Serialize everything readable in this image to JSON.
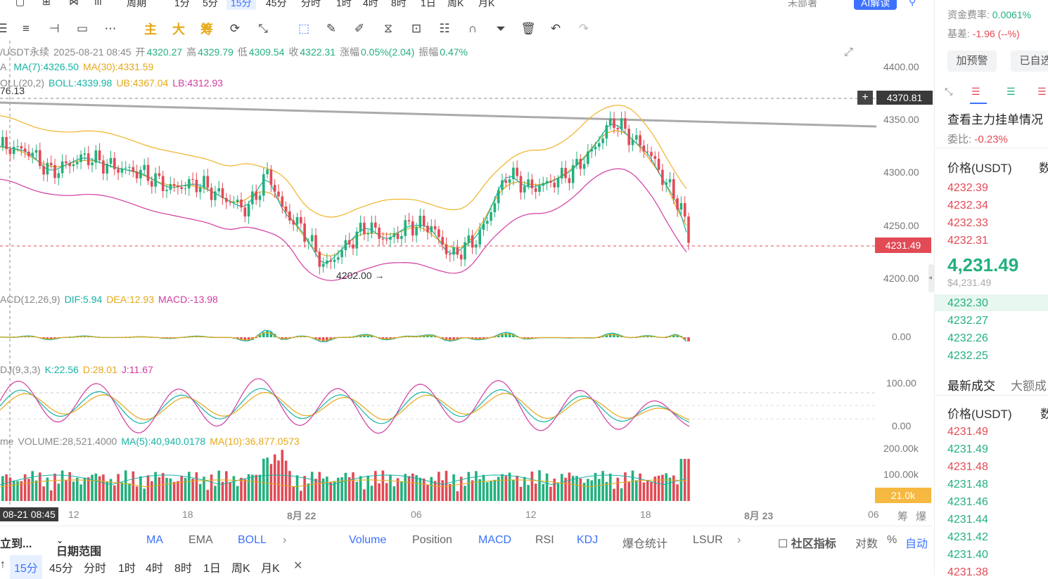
{
  "topnav": {
    "items": [
      "周期",
      "1分",
      "5分",
      "15分",
      "45分",
      "分时",
      "1时",
      "4时",
      "8时",
      "1日",
      "周K",
      "月K"
    ],
    "active": "15分",
    "more_label": "未部署",
    "ai_label": "AI解读"
  },
  "toolbar": {
    "main_label": "主",
    "big_label": "大",
    "chips_label": "筹"
  },
  "chart": {
    "symbol": "/USDT永续",
    "datetime": "2025-08-21 08:45",
    "open_label": "开",
    "open": "4320.27",
    "high_label": "高",
    "high": "4329.79",
    "low_label": "低",
    "low": "4309.54",
    "close_label": "收",
    "close": "4322.31",
    "change_label": "涨幅",
    "change": "0.05%(2.04)",
    "amp_label": "振幅",
    "amp": "0.47%",
    "ma_prefix": "A",
    "ma7": "MA(7):4326.50",
    "ma30": "MA(30):4331.59",
    "boll_prefix": "OLL(20,2)",
    "boll_mid": "BOLL:4339.98",
    "boll_ub": "UB:4367.04",
    "boll_lb": "LB:4312.93",
    "left_price": "76.13",
    "crosshair_price": "4370.81",
    "last_price": "4231.49",
    "low_marker": "4202.00",
    "y_labels": [
      "4400.00",
      "4350.00",
      "4300.00",
      "4250.00",
      "4200.00"
    ]
  },
  "macd": {
    "prefix": "ACD(12,26,9)",
    "dif": "DIF:5.94",
    "dea": "DEA:12.93",
    "macd": "MACD:-13.98",
    "y_label": "0.00"
  },
  "kdj": {
    "prefix": "DJ(9,3,3)",
    "k": "K:22.56",
    "d": "D:28.01",
    "j": "J:11.67",
    "y_labels": [
      "100.00",
      "0.00"
    ]
  },
  "volume": {
    "prefix": "me",
    "vol": "VOLUME:28,521.4000",
    "ma5": "MA(5):40,940.0178",
    "ma10": "MA(10):36,877.0573",
    "y_labels": [
      "200.00k",
      "100.00k"
    ],
    "last_vol": "21.0k"
  },
  "xaxis": {
    "cursor_label": "08-21 08:45",
    "labels": [
      "12",
      "18",
      "8月 22",
      "06",
      "12",
      "18",
      "8月 23",
      "06"
    ],
    "chip_label": "筹",
    "burst_label": "爆"
  },
  "bottom_bar": {
    "goto": "立到...",
    "date_range": "日期范围",
    "main_indicators": [
      "MA",
      "EMA",
      "BOLL"
    ],
    "sub_indicators": [
      "Volume",
      "Position",
      "MACD",
      "RSI",
      "KDJ",
      "爆仓统计",
      "LSUR"
    ],
    "community": "社区指标",
    "log": "对数",
    "percent": "%",
    "auto": "自动"
  },
  "period_bar": {
    "items": [
      "15分",
      "45分",
      "分时",
      "1时",
      "4时",
      "8时",
      "1日",
      "周K",
      "月K"
    ],
    "active": "15分"
  },
  "rightpanel": {
    "funding_label": "资金费率:",
    "funding_value": "0.0061%",
    "basis_label": "基差:",
    "basis_value": "-1.96 (--%)",
    "alert_button": "加预警",
    "selfselect_button": "已自选",
    "orderbook_title": "查看主力挂单情况",
    "ratio_label": "委比:",
    "ratio_value": "-0.23%",
    "price_header": "价格(USDT)",
    "qty_header": "数",
    "asks": [
      "4232.39",
      "4232.34",
      "4232.33",
      "4232.31"
    ],
    "mid_price": "4,231.49",
    "mid_usd": "$4,231.49",
    "bids": [
      "4232.30",
      "4232.27",
      "4232.26",
      "4232.25"
    ],
    "trades_tab": "最新成交",
    "big_trades_tab": "大额成",
    "trades": [
      "4231.49",
      "4231.49",
      "4231.48",
      "4231.48",
      "4231.46",
      "4231.44",
      "4231.42",
      "4231.40",
      "4231.38"
    ],
    "colors": {
      "up": "#23b07d",
      "down": "#e24a55",
      "accent": "#3c72ff"
    }
  },
  "chart_data": {
    "type": "candlestick",
    "ylim_price": [
      4185,
      4410
    ],
    "price_levels": [
      4400,
      4350,
      4300,
      4250,
      4200
    ],
    "last_price": 4231.49,
    "low_marker": 4202.0
  }
}
